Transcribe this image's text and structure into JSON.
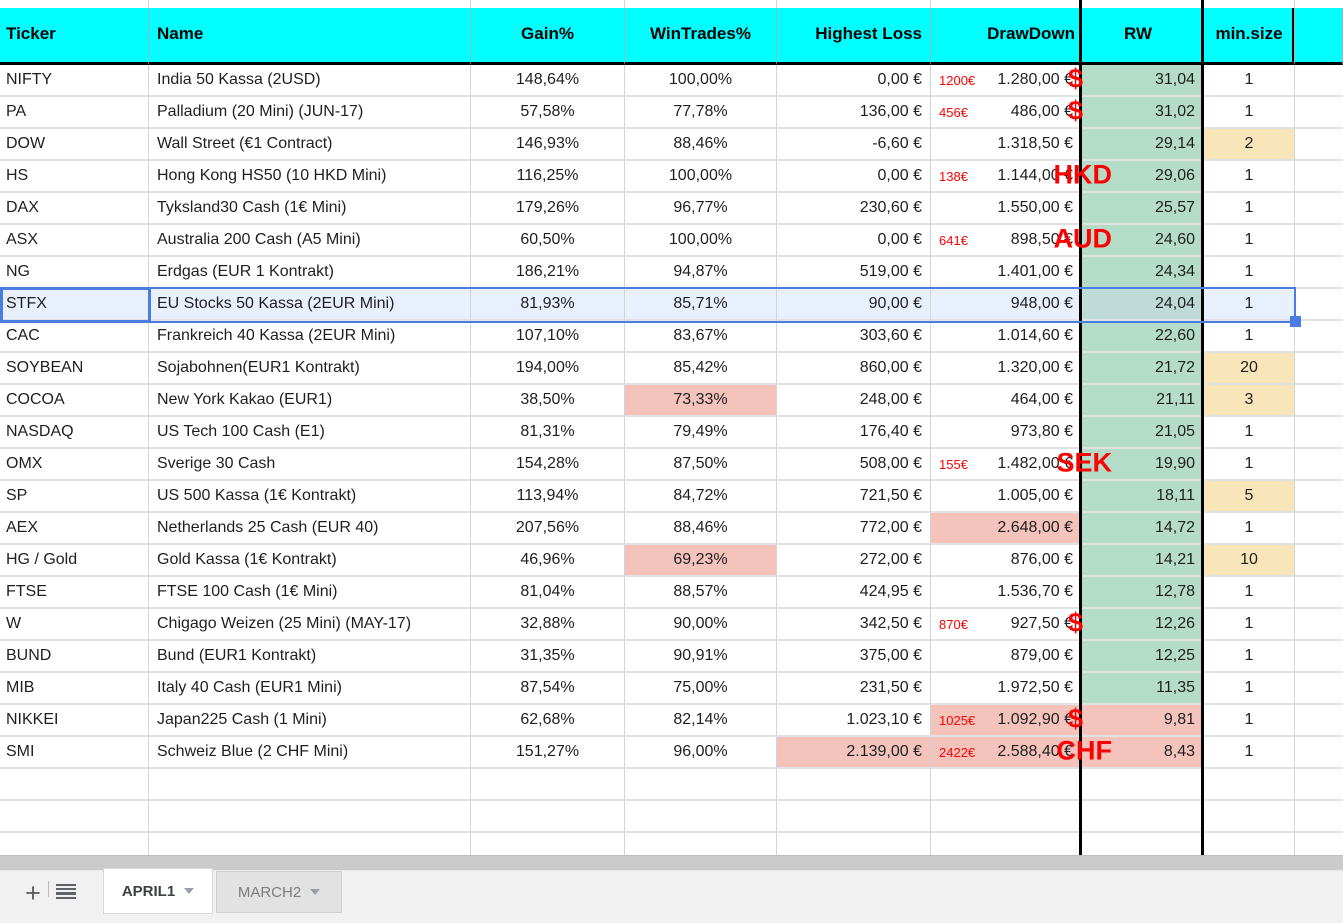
{
  "columns": {
    "ticker": "Ticker",
    "name": "Name",
    "gain": "Gain%",
    "win": "WinTrades%",
    "loss": "Highest Loss",
    "dd": "DrawDown",
    "rw": "RW",
    "min": "min.size"
  },
  "table": {
    "rows": [
      {
        "ticker": "NIFTY",
        "name": "India 50 Kassa (2USD)",
        "gain": "148,64%",
        "win": "100,00%",
        "loss": "0,00 €",
        "dd_note": "1200€",
        "dd": "1.280,00 €",
        "dd_cur": "$",
        "rw": "31,04",
        "min": "1"
      },
      {
        "ticker": "PA",
        "name": "Palladium (20 Mini) (JUN-17)",
        "gain": "57,58%",
        "win": "77,78%",
        "loss": "136,00 €",
        "dd_note": "456€",
        "dd": "486,00 €",
        "dd_cur": "$",
        "rw": "31,02",
        "min": "1"
      },
      {
        "ticker": "DOW",
        "name": "Wall Street (€1 Contract)",
        "gain": "146,93%",
        "win": "88,46%",
        "loss": "-6,60 €",
        "dd": "1.318,50 €",
        "rw": "29,14",
        "min": "2",
        "min_hl": true
      },
      {
        "ticker": "HS",
        "name": "Hong Kong HS50 (10 HKD Mini)",
        "gain": "116,25%",
        "win": "100,00%",
        "loss": "0,00 €",
        "dd_note": "138€",
        "dd": "1.144,00 €",
        "dd_cur": "HKD",
        "rw": "29,06",
        "min": "1"
      },
      {
        "ticker": "DAX",
        "name": "Tyksland30 Cash (1€ Mini)",
        "gain": "179,26%",
        "win": "96,77%",
        "loss": "230,60 €",
        "dd": "1.550,00 €",
        "rw": "25,57",
        "min": "1"
      },
      {
        "ticker": "ASX",
        "name": "Australia 200 Cash (A5 Mini)",
        "gain": "60,50%",
        "win": "100,00%",
        "loss": "0,00 €",
        "dd_note": "641€",
        "dd": "898,50 €",
        "dd_cur": "AUD",
        "rw": "24,60",
        "min": "1"
      },
      {
        "ticker": "NG",
        "name": "Erdgas (EUR 1 Kontrakt)",
        "gain": "186,21%",
        "win": "94,87%",
        "loss": "519,00 €",
        "dd": "1.401,00 €",
        "rw": "24,34",
        "min": "1"
      },
      {
        "ticker": "STFX",
        "name": "EU Stocks 50 Kassa (2EUR Mini)",
        "gain": "81,93%",
        "win": "85,71%",
        "loss": "90,00 €",
        "dd": "948,00 €",
        "rw": "24,04",
        "min": "1",
        "selected": true
      },
      {
        "ticker": "CAC",
        "name": "Frankreich 40 Kassa (2EUR Mini)",
        "gain": "107,10%",
        "win": "83,67%",
        "loss": "303,60 €",
        "dd": "1.014,60 €",
        "rw": "22,60",
        "min": "1"
      },
      {
        "ticker": "SOYBEAN",
        "name": "Sojabohnen(EUR1 Kontrakt)",
        "gain": "194,00%",
        "win": "85,42%",
        "loss": "860,00 €",
        "dd": "1.320,00 €",
        "rw": "21,72",
        "min": "20",
        "min_hl": true
      },
      {
        "ticker": "COCOA",
        "name": "New York Kakao (EUR1)",
        "gain": "38,50%",
        "win": "73,33%",
        "win_hl": true,
        "loss": "248,00 €",
        "dd": "464,00 €",
        "rw": "21,11",
        "min": "3",
        "min_hl": true
      },
      {
        "ticker": "NASDAQ",
        "name": "US Tech 100 Cash (E1)",
        "gain": "81,31%",
        "win": "79,49%",
        "loss": "176,40 €",
        "dd": "973,80 €",
        "rw": "21,05",
        "min": "1"
      },
      {
        "ticker": "OMX",
        "name": "Sverige 30 Cash",
        "gain": "154,28%",
        "win": "87,50%",
        "loss": "508,00 €",
        "dd_note": "155€",
        "dd": "1.482,00 €",
        "dd_cur": "SEK",
        "rw": "19,90",
        "min": "1"
      },
      {
        "ticker": "SP",
        "name": "US 500 Kassa (1€ Kontrakt)",
        "gain": "113,94%",
        "win": "84,72%",
        "loss": "721,50 €",
        "dd": "1.005,00 €",
        "rw": "18,11",
        "min": "5",
        "min_hl": true
      },
      {
        "ticker": "AEX",
        "name": "Netherlands 25 Cash (EUR 40)",
        "gain": "207,56%",
        "win": "88,46%",
        "loss": "772,00 €",
        "dd": "2.648,00 €",
        "dd_hl": true,
        "rw": "14,72",
        "min": "1"
      },
      {
        "ticker": "HG / Gold",
        "name": "Gold Kassa (1€ Kontrakt)",
        "gain": "46,96%",
        "win": "69,23%",
        "win_hl": true,
        "loss": "272,00 €",
        "dd": "876,00 €",
        "rw": "14,21",
        "min": "10",
        "min_hl": true
      },
      {
        "ticker": "FTSE",
        "name": "FTSE 100 Cash (1€ Mini)",
        "gain": "81,04%",
        "win": "88,57%",
        "loss": "424,95 €",
        "dd": "1.536,70 €",
        "rw": "12,78",
        "min": "1"
      },
      {
        "ticker": "W",
        "name": "Chigago Weizen (25 Mini) (MAY-17)",
        "gain": "32,88%",
        "win": "90,00%",
        "loss": "342,50 €",
        "dd_note": "870€",
        "dd": "927,50 €",
        "dd_cur": "$",
        "rw": "12,26",
        "min": "1"
      },
      {
        "ticker": "BUND",
        "name": "Bund (EUR1 Kontrakt)",
        "gain": "31,35%",
        "win": "90,91%",
        "loss": "375,00 €",
        "dd": "879,00 €",
        "rw": "12,25",
        "min": "1"
      },
      {
        "ticker": "MIB",
        "name": "Italy 40 Cash (EUR1 Mini)",
        "gain": "87,54%",
        "win": "75,00%",
        "loss": "231,50 €",
        "dd": "1.972,50 €",
        "rw": "11,35",
        "min": "1"
      },
      {
        "ticker": "NIKKEI",
        "name": "Japan225 Cash (1 Mini)",
        "gain": "62,68%",
        "win": "82,14%",
        "loss": "1.023,10 €",
        "dd_note": "1025€",
        "dd": "1.092,90 €",
        "dd_cur": "$",
        "dd_hl": true,
        "rw": "9,81",
        "rw_hl": true,
        "min": "1"
      },
      {
        "ticker": "SMI",
        "name": "Schweiz Blue (2 CHF Mini)",
        "gain": "151,27%",
        "win": "96,00%",
        "loss": "2.139,00 €",
        "loss_hl": true,
        "dd_note": "2422€",
        "dd": "2.588,40 €",
        "dd_cur": "CHF",
        "dd_hl": true,
        "rw": "8,43",
        "rw_hl": true,
        "min": "1"
      }
    ]
  },
  "footer": {
    "add_sheet_label": "+",
    "tabs": [
      {
        "label": "APRIL1",
        "active": true
      },
      {
        "label": "MARCH2",
        "active": false
      }
    ]
  },
  "colors": {
    "header_bg": "#00ffff",
    "rw_green": "#b5dcc8",
    "highlight_pink": "#f3c3bc",
    "minsize_yellow": "#f8e5b9",
    "annotation_red": "#ff0000",
    "selection_blue": "#4a7de2"
  }
}
